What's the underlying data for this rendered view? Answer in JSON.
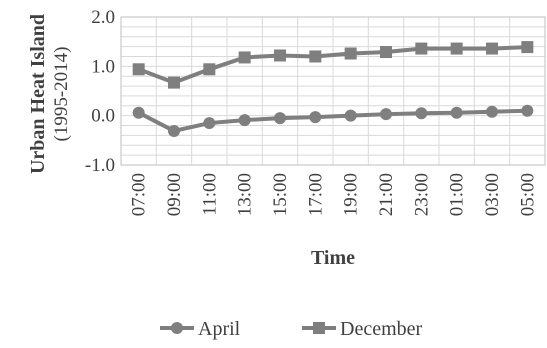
{
  "chart_data": {
    "type": "line",
    "title": "",
    "xlabel": "Time",
    "ylabel": "Urban Heat Island",
    "ylabel_sub": "(1995-2014)",
    "ylim": [
      -1.0,
      2.0
    ],
    "y_ticks": [
      "2.0",
      "1.0",
      "0.0",
      "-1.0"
    ],
    "y_tick_values": [
      2.0,
      1.0,
      0.0,
      -1.0
    ],
    "grid": true,
    "legend_position": "bottom",
    "categories": [
      "07:00",
      "09:00",
      "11:00",
      "13:00",
      "15:00",
      "17:00",
      "19:00",
      "21:00",
      "23:00",
      "01:00",
      "03:00",
      "05:00"
    ],
    "series": [
      {
        "name": "April",
        "marker": "circle",
        "color": "#7f7f7f",
        "values": [
          0.06,
          -0.31,
          -0.15,
          -0.09,
          -0.05,
          -0.03,
          0.0,
          0.03,
          0.05,
          0.06,
          0.08,
          0.1
        ]
      },
      {
        "name": "December",
        "marker": "square",
        "color": "#7f7f7f",
        "values": [
          0.94,
          0.67,
          0.94,
          1.18,
          1.22,
          1.2,
          1.26,
          1.29,
          1.36,
          1.36,
          1.36,
          1.39
        ]
      }
    ]
  }
}
